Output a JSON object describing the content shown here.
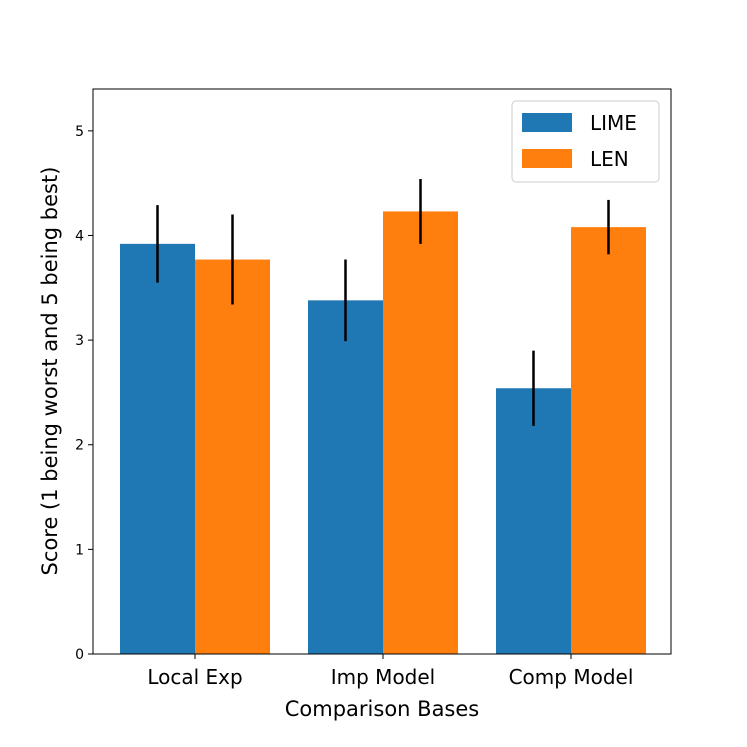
{
  "chart_data": {
    "type": "bar",
    "title": "",
    "xlabel": "Comparison Bases",
    "ylabel": "Score (1 being worst and 5 being best)",
    "categories": [
      "Local Exp",
      "Imp Model",
      "Comp Model"
    ],
    "ylim": [
      0,
      5.4
    ],
    "yticks": [
      0,
      1,
      2,
      3,
      4,
      5
    ],
    "grid": false,
    "legend_position": "top-right",
    "series": [
      {
        "name": "LIME",
        "color": "#1f77b4",
        "values": [
          3.92,
          3.38,
          2.54
        ],
        "errors": [
          0.37,
          0.39,
          0.36
        ]
      },
      {
        "name": "LEN",
        "color": "#ff7f0e",
        "values": [
          3.77,
          4.23,
          4.08
        ],
        "errors": [
          0.43,
          0.31,
          0.26
        ]
      }
    ]
  }
}
